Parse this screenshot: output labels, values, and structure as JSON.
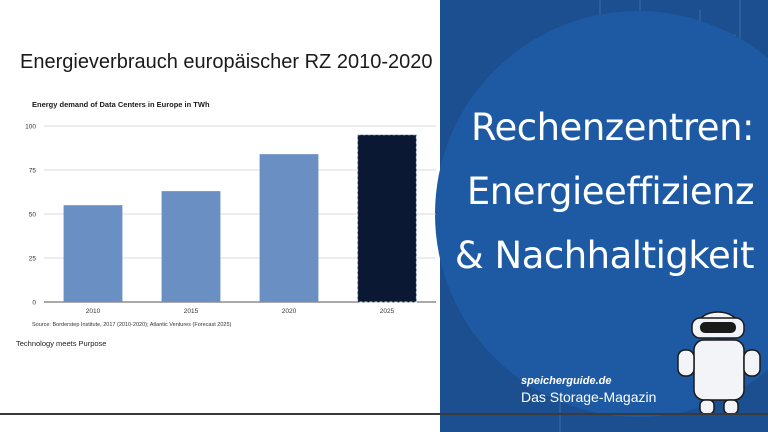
{
  "page": {
    "main_title": "Energieverbrauch europäischer RZ 2010-2020",
    "footer_left": "Technology meets Purpose"
  },
  "banner": {
    "headline": [
      "Rechenzentren:",
      "Energieeffizienz",
      "& Nachhaltigkeit"
    ],
    "brand_url": "speicherguide.de",
    "brand_tagline": "Das Storage-Magazin",
    "circle_color": "#1e5aa3",
    "panel_color": "#1c4f8f",
    "mascot": "robot-mascot-icon"
  },
  "chart_data": {
    "type": "bar",
    "title": "Energy demand of Data Centers in Europe in TWh",
    "categories": [
      "2010",
      "2015",
      "2020",
      "2025"
    ],
    "values": [
      55,
      63,
      84,
      95
    ],
    "forecast": [
      false,
      false,
      false,
      true
    ],
    "ylim": [
      0,
      100
    ],
    "yticks": [
      0,
      25,
      50,
      75,
      100
    ],
    "grid": true,
    "legend": "none",
    "source": "Source: Borderstep Institute, 2017 (2010-2020); Atlantic Ventures (Forecast 2025)",
    "colors": {
      "bar": "#6a8fc2",
      "forecast_bar": "#0b1833",
      "grid": "#cfcfcf",
      "axis": "#555555"
    }
  }
}
